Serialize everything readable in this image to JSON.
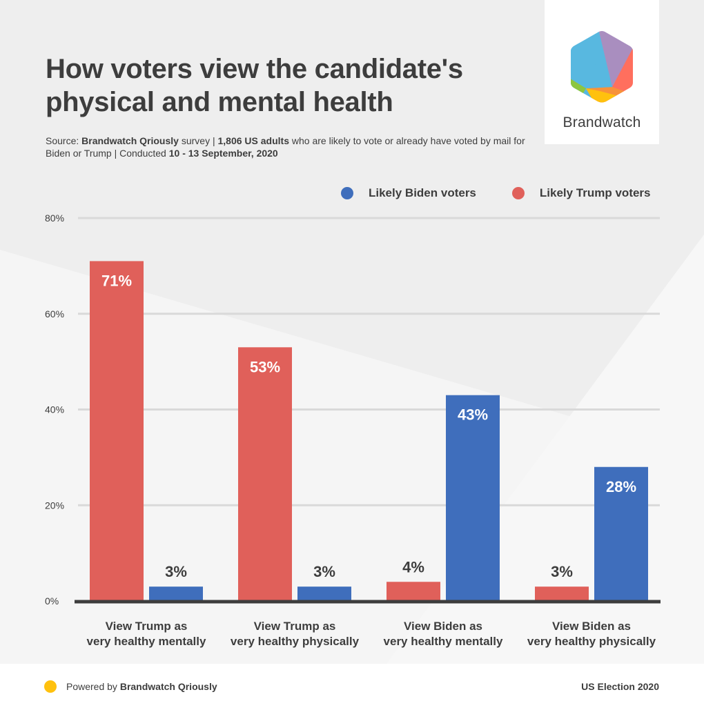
{
  "header": {
    "title_line1": "How voters view the candidate's",
    "title_line2": "physical and mental health",
    "subtitle": {
      "source_prefix": "Source: ",
      "source_name": "Brandwatch Qriously",
      "source_suffix": " survey | ",
      "sample": "1,806 US adults",
      "sample_suffix": " who are likely to vote or already have voted by mail for Biden or Trump | Conducted ",
      "dates": "10 - 13 September, 2020"
    }
  },
  "logo": {
    "name": "Brandwatch",
    "icon": "brandwatch-hexagon-logo-icon",
    "colors": [
      "#58b8e0",
      "#a98ebf",
      "#ff6f5e",
      "#f7923a",
      "#ffc10e",
      "#8dc63f"
    ]
  },
  "legend": [
    {
      "label": "Likely Biden voters",
      "color": "#3f6ebc"
    },
    {
      "label": "Likely Trump voters",
      "color": "#e0605a"
    }
  ],
  "chart_data": {
    "type": "bar",
    "title": "How voters view the candidate's physical and mental health",
    "xlabel": "",
    "ylabel": "",
    "ylim": [
      0,
      80
    ],
    "yticks": [
      0,
      20,
      40,
      60,
      80
    ],
    "ytick_labels": [
      "0%",
      "20%",
      "40%",
      "60%",
      "80%"
    ],
    "grid": true,
    "legend_position": "top-right",
    "categories": [
      [
        "View Trump as",
        "very healthy mentally"
      ],
      [
        "View Trump as",
        "very healthy physically"
      ],
      [
        "View Biden as",
        "very healthy mentally"
      ],
      [
        "View Biden as",
        "very healthy physically"
      ]
    ],
    "series": [
      {
        "name": "Likely Trump voters",
        "color": "#e0605a",
        "values": [
          71,
          53,
          4,
          3
        ],
        "labels": [
          "71%",
          "53%",
          "4%",
          "3%"
        ]
      },
      {
        "name": "Likely Biden voters",
        "color": "#3f6ebc",
        "values": [
          3,
          3,
          43,
          28
        ],
        "labels": [
          "3%",
          "3%",
          "43%",
          "28%"
        ]
      }
    ]
  },
  "footer": {
    "powered_prefix": "Powered by ",
    "powered_name": "Brandwatch Qriously",
    "dot_color": "#ffc10e",
    "right_text": "US Election 2020"
  }
}
